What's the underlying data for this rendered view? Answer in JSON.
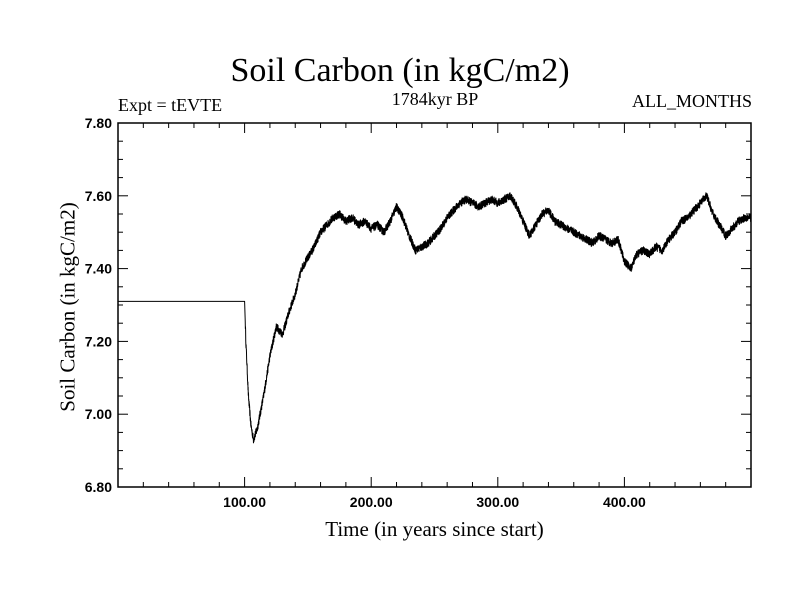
{
  "chart_data": {
    "type": "line",
    "title": "Soil Carbon (in kgC/m2)",
    "subtitle": "1784kyr BP",
    "left_annotation": "Expt = tEVTE",
    "right_annotation": "ALL_MONTHS",
    "xlabel": "Time (in years since start)",
    "ylabel": "Soil Carbon (in kgC/m2)",
    "xlim": [
      0,
      500
    ],
    "ylim": [
      6.8,
      7.8
    ],
    "x_ticks": [
      100,
      200,
      300,
      400
    ],
    "x_tick_labels": [
      "100.00",
      "200.00",
      "300.00",
      "400.00"
    ],
    "y_ticks": [
      6.8,
      7.0,
      7.2,
      7.4,
      7.6,
      7.8
    ],
    "y_tick_labels": [
      "6.80",
      "7.00",
      "7.20",
      "7.40",
      "7.60",
      "7.80"
    ],
    "line_color": "#000000",
    "series": [
      {
        "name": "Soil Carbon",
        "x": [
          0,
          100,
          101,
          103,
          105,
          107,
          110,
          115,
          120,
          125,
          130,
          135,
          140,
          145,
          150,
          155,
          160,
          165,
          170,
          175,
          180,
          185,
          190,
          195,
          200,
          205,
          210,
          215,
          220,
          225,
          230,
          235,
          240,
          245,
          250,
          255,
          260,
          265,
          270,
          275,
          280,
          285,
          290,
          295,
          300,
          305,
          310,
          315,
          320,
          325,
          330,
          335,
          340,
          345,
          350,
          355,
          360,
          365,
          370,
          375,
          380,
          385,
          390,
          395,
          400,
          405,
          410,
          415,
          420,
          425,
          430,
          435,
          440,
          445,
          450,
          455,
          460,
          465,
          470,
          475,
          480,
          485,
          490,
          495,
          500
        ],
        "values": [
          7.31,
          7.31,
          7.2,
          7.05,
          6.97,
          6.93,
          6.96,
          7.05,
          7.16,
          7.24,
          7.22,
          7.28,
          7.33,
          7.4,
          7.43,
          7.46,
          7.5,
          7.52,
          7.54,
          7.55,
          7.53,
          7.54,
          7.52,
          7.53,
          7.51,
          7.52,
          7.5,
          7.53,
          7.57,
          7.54,
          7.49,
          7.45,
          7.46,
          7.47,
          7.49,
          7.51,
          7.54,
          7.56,
          7.58,
          7.59,
          7.58,
          7.57,
          7.58,
          7.59,
          7.58,
          7.59,
          7.6,
          7.57,
          7.53,
          7.49,
          7.52,
          7.55,
          7.56,
          7.53,
          7.52,
          7.51,
          7.5,
          7.49,
          7.48,
          7.47,
          7.49,
          7.48,
          7.47,
          7.48,
          7.42,
          7.4,
          7.44,
          7.45,
          7.44,
          7.46,
          7.45,
          7.48,
          7.5,
          7.53,
          7.54,
          7.56,
          7.58,
          7.6,
          7.55,
          7.52,
          7.49,
          7.51,
          7.53,
          7.54,
          7.54
        ]
      }
    ]
  }
}
